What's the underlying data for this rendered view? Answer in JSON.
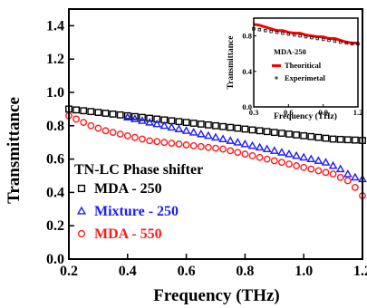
{
  "chart_data": [
    {
      "type": "scatter",
      "xlabel": "Frequency (THz)",
      "ylabel": "Transmittance",
      "xlim": [
        0.2,
        1.2
      ],
      "ylim": [
        0.0,
        1.5
      ],
      "x_ticks": [
        "0.2",
        "0.4",
        "0.6",
        "0.8",
        "1.0",
        "1.2"
      ],
      "y_ticks": [
        "0.0",
        "0.2",
        "0.4",
        "0.6",
        "0.8",
        "1.0",
        "1.2",
        "1.4"
      ],
      "grid": false,
      "legend_title": "TN-LC Phase shifter",
      "legend_position": "bottom-left",
      "series": [
        {
          "name": "MDA - 250",
          "marker": "square",
          "color": "#000000",
          "x": [
            0.2,
            0.225,
            0.25,
            0.275,
            0.3,
            0.325,
            0.35,
            0.375,
            0.4,
            0.425,
            0.45,
            0.475,
            0.5,
            0.525,
            0.55,
            0.575,
            0.6,
            0.625,
            0.65,
            0.675,
            0.7,
            0.725,
            0.75,
            0.775,
            0.8,
            0.825,
            0.85,
            0.875,
            0.9,
            0.925,
            0.95,
            0.975,
            1.0,
            1.025,
            1.05,
            1.075,
            1.1,
            1.125,
            1.15,
            1.175,
            1.2
          ],
          "values": [
            0.9,
            0.895,
            0.89,
            0.885,
            0.88,
            0.875,
            0.87,
            0.865,
            0.86,
            0.855,
            0.85,
            0.845,
            0.84,
            0.835,
            0.83,
            0.825,
            0.82,
            0.815,
            0.81,
            0.805,
            0.8,
            0.795,
            0.79,
            0.785,
            0.78,
            0.775,
            0.77,
            0.765,
            0.76,
            0.755,
            0.75,
            0.745,
            0.74,
            0.735,
            0.73,
            0.725,
            0.72,
            0.718,
            0.716,
            0.714,
            0.712
          ]
        },
        {
          "name": "Mixture - 250",
          "marker": "triangle",
          "color": "#1a1aff",
          "x": [
            0.4,
            0.425,
            0.45,
            0.475,
            0.5,
            0.525,
            0.55,
            0.575,
            0.6,
            0.625,
            0.65,
            0.675,
            0.7,
            0.725,
            0.75,
            0.775,
            0.8,
            0.825,
            0.85,
            0.875,
            0.9,
            0.925,
            0.95,
            0.975,
            1.0,
            1.025,
            1.05,
            1.075,
            1.1,
            1.125,
            1.15,
            1.175,
            1.2
          ],
          "values": [
            0.85,
            0.84,
            0.83,
            0.82,
            0.81,
            0.8,
            0.79,
            0.78,
            0.77,
            0.76,
            0.75,
            0.74,
            0.73,
            0.72,
            0.71,
            0.7,
            0.69,
            0.68,
            0.67,
            0.66,
            0.65,
            0.64,
            0.63,
            0.62,
            0.61,
            0.6,
            0.59,
            0.58,
            0.56,
            0.54,
            0.51,
            0.49,
            0.48
          ]
        },
        {
          "name": "MDA - 550",
          "marker": "circle",
          "color": "#ff1a1a",
          "x": [
            0.2,
            0.225,
            0.25,
            0.275,
            0.3,
            0.325,
            0.35,
            0.375,
            0.4,
            0.425,
            0.45,
            0.475,
            0.5,
            0.525,
            0.55,
            0.575,
            0.6,
            0.625,
            0.65,
            0.675,
            0.7,
            0.725,
            0.75,
            0.775,
            0.8,
            0.825,
            0.85,
            0.875,
            0.9,
            0.925,
            0.95,
            0.975,
            1.0,
            1.025,
            1.05,
            1.075,
            1.1,
            1.125,
            1.15,
            1.175,
            1.2
          ],
          "values": [
            0.86,
            0.84,
            0.82,
            0.8,
            0.785,
            0.77,
            0.76,
            0.75,
            0.74,
            0.73,
            0.72,
            0.71,
            0.705,
            0.7,
            0.695,
            0.69,
            0.685,
            0.68,
            0.675,
            0.67,
            0.665,
            0.66,
            0.65,
            0.64,
            0.63,
            0.62,
            0.61,
            0.6,
            0.59,
            0.58,
            0.57,
            0.56,
            0.55,
            0.54,
            0.53,
            0.52,
            0.51,
            0.49,
            0.47,
            0.43,
            0.38
          ]
        }
      ]
    },
    {
      "type": "line",
      "title": "MDA-250",
      "xlabel": "Frequency (THz)",
      "ylabel": "Transmittance",
      "xlim": [
        0.3,
        1.2
      ],
      "ylim": [
        0.0,
        1.0
      ],
      "x_ticks": [
        "0.3",
        "0.6",
        "0.9",
        "1.2"
      ],
      "y_ticks": [
        "0.0",
        "0.4",
        "0.8"
      ],
      "legend_position": "center",
      "series": [
        {
          "name": "Theoritical",
          "color": "#ff0000",
          "x": [
            0.3,
            0.35,
            0.4,
            0.45,
            0.5,
            0.55,
            0.6,
            0.65,
            0.7,
            0.75,
            0.8,
            0.85,
            0.9,
            0.95,
            1.0,
            1.05,
            1.1,
            1.15,
            1.2
          ],
          "values": [
            0.93,
            0.92,
            0.9,
            0.88,
            0.86,
            0.86,
            0.84,
            0.83,
            0.83,
            0.81,
            0.8,
            0.79,
            0.79,
            0.77,
            0.77,
            0.75,
            0.73,
            0.72,
            0.72
          ]
        },
        {
          "name": "Experimetal",
          "marker": "square",
          "color": "#000000",
          "x": [
            0.3,
            0.35,
            0.4,
            0.45,
            0.5,
            0.55,
            0.6,
            0.65,
            0.7,
            0.75,
            0.8,
            0.85,
            0.9,
            0.95,
            1.0,
            1.05,
            1.1,
            1.15,
            1.2
          ],
          "values": [
            0.88,
            0.87,
            0.86,
            0.85,
            0.84,
            0.83,
            0.82,
            0.81,
            0.8,
            0.79,
            0.78,
            0.77,
            0.76,
            0.75,
            0.74,
            0.73,
            0.72,
            0.71,
            0.71
          ]
        }
      ]
    }
  ]
}
